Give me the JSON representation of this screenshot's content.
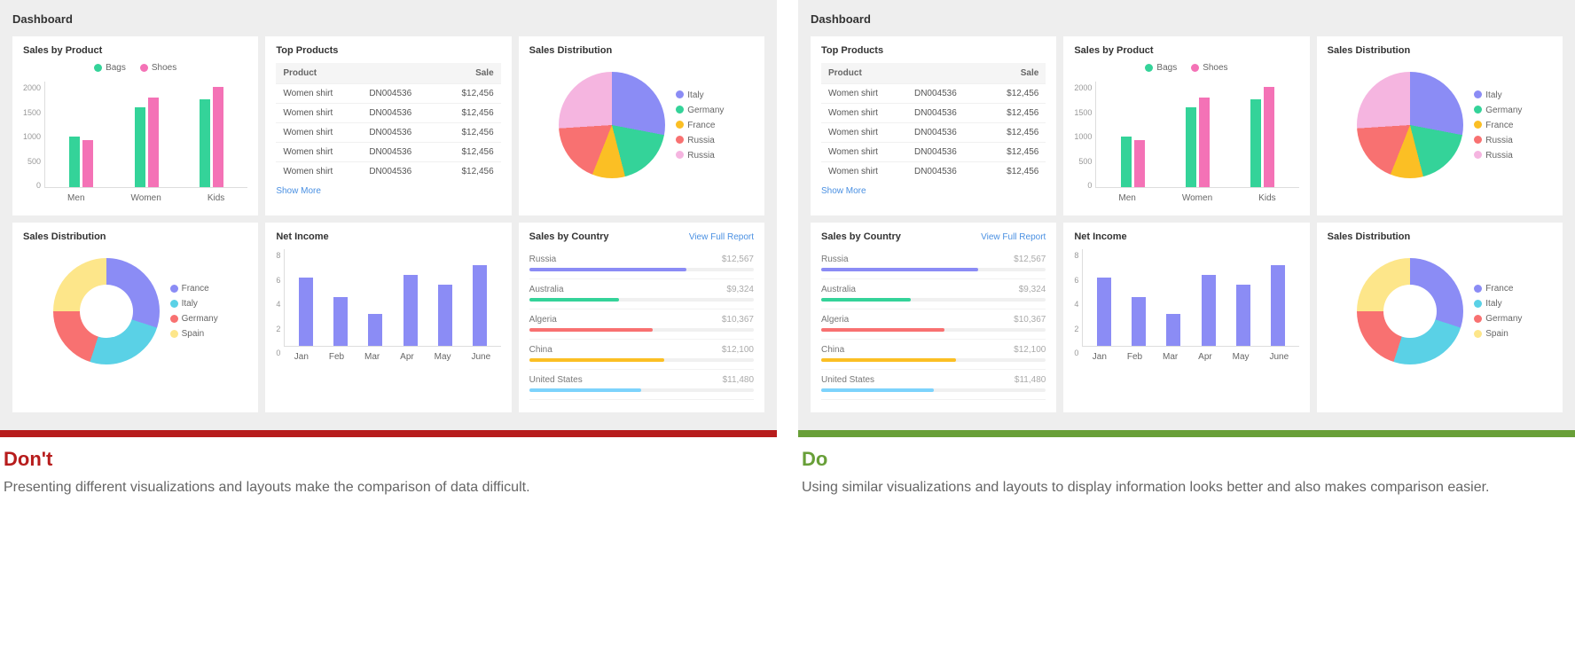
{
  "dont": {
    "dash_title": "Dashboard",
    "heading": "Don't",
    "heading_color": "#b71c1c",
    "bar_color": "#b71c1c",
    "desc": "Presenting different visualizations and layouts make the comparison of data difficult.",
    "cards": {
      "sales_by_product": {
        "title": "Sales by Product",
        "legend": [
          {
            "label": "Bags",
            "color": "#34d399"
          },
          {
            "label": "Shoes",
            "color": "#f472b6"
          }
        ],
        "ylim": [
          0,
          2000
        ],
        "ytick_step": 500,
        "categories": [
          "Men",
          "Women",
          "Kids"
        ],
        "series": [
          {
            "color": "#34d399",
            "values": [
              950,
              1500,
              1650
            ]
          },
          {
            "color": "#f472b6",
            "values": [
              880,
              1680,
              1880
            ]
          }
        ]
      },
      "top_products": {
        "title": "Top Products",
        "columns": [
          "Product",
          "",
          "Sale"
        ],
        "rows": [
          [
            "Women shirt",
            "DN004536",
            "$12,456"
          ],
          [
            "Women shirt",
            "DN004536",
            "$12,456"
          ],
          [
            "Women shirt",
            "DN004536",
            "$12,456"
          ],
          [
            "Women shirt",
            "DN004536",
            "$12,456"
          ],
          [
            "Women shirt",
            "DN004536",
            "$12,456"
          ]
        ],
        "show_more": "Show More"
      },
      "sales_dist_pie": {
        "title": "Sales Distribution",
        "type": "pie",
        "slices": [
          {
            "label": "Italy",
            "color": "#8b8cf5",
            "value": 28
          },
          {
            "label": "Germany",
            "color": "#34d399",
            "value": 18
          },
          {
            "label": "France",
            "color": "#fbbf24",
            "value": 10
          },
          {
            "label": "Russia",
            "color": "#f87171",
            "value": 18
          },
          {
            "label": "Russia",
            "color": "#f5b5e0",
            "value": 26
          }
        ]
      },
      "sales_dist_donut": {
        "title": "Sales Distribution",
        "type": "donut",
        "slices": [
          {
            "label": "France",
            "color": "#8b8cf5",
            "value": 30
          },
          {
            "label": "Italy",
            "color": "#5ad1e6",
            "value": 25
          },
          {
            "label": "Germany",
            "color": "#f87171",
            "value": 20
          },
          {
            "label": "Spain",
            "color": "#fde68a",
            "value": 25
          }
        ]
      },
      "net_income": {
        "title": "Net Income",
        "ylim": [
          0,
          8
        ],
        "ytick_step": 2,
        "categories": [
          "Jan",
          "Feb",
          "Mar",
          "Apr",
          "May",
          "June"
        ],
        "color": "#8b8cf5",
        "values": [
          5.6,
          4.0,
          2.6,
          5.8,
          5.0,
          6.6
        ]
      },
      "sales_by_country": {
        "title": "Sales by Country",
        "link": "View Full Report",
        "rows": [
          {
            "label": "Russia",
            "value": "$12,567",
            "pct": 70,
            "color": "#8b8cf5"
          },
          {
            "label": "Australia",
            "value": "$9,324",
            "pct": 40,
            "color": "#34d399"
          },
          {
            "label": "Algeria",
            "value": "$10,367",
            "pct": 55,
            "color": "#f87171"
          },
          {
            "label": "China",
            "value": "$12,100",
            "pct": 60,
            "color": "#fbbf24"
          },
          {
            "label": "United States",
            "value": "$11,480",
            "pct": 50,
            "color": "#7dd3fc"
          }
        ]
      }
    }
  },
  "do": {
    "dash_title": "Dashboard",
    "heading": "Do",
    "heading_color": "#689f38",
    "bar_color": "#689f38",
    "desc": "Using similar visualizations and layouts to display information looks better and also makes comparison easier.",
    "cards": {
      "top_products": {
        "title": "Top Products",
        "columns": [
          "Product",
          "",
          "Sale"
        ],
        "rows": [
          [
            "Women shirt",
            "DN004536",
            "$12,456"
          ],
          [
            "Women shirt",
            "DN004536",
            "$12,456"
          ],
          [
            "Women shirt",
            "DN004536",
            "$12,456"
          ],
          [
            "Women shirt",
            "DN004536",
            "$12,456"
          ],
          [
            "Women shirt",
            "DN004536",
            "$12,456"
          ]
        ],
        "show_more": "Show More"
      },
      "sales_by_product": {
        "title": "Sales by Product",
        "legend": [
          {
            "label": "Bags",
            "color": "#34d399"
          },
          {
            "label": "Shoes",
            "color": "#f472b6"
          }
        ],
        "ylim": [
          0,
          2000
        ],
        "ytick_step": 500,
        "categories": [
          "Men",
          "Women",
          "Kids"
        ],
        "series": [
          {
            "color": "#34d399",
            "values": [
              950,
              1500,
              1650
            ]
          },
          {
            "color": "#f472b6",
            "values": [
              880,
              1680,
              1880
            ]
          }
        ]
      },
      "sales_dist_pie": {
        "title": "Sales Distribution",
        "type": "pie",
        "slices": [
          {
            "label": "Italy",
            "color": "#8b8cf5",
            "value": 28
          },
          {
            "label": "Germany",
            "color": "#34d399",
            "value": 18
          },
          {
            "label": "France",
            "color": "#fbbf24",
            "value": 10
          },
          {
            "label": "Russia",
            "color": "#f87171",
            "value": 18
          },
          {
            "label": "Russia",
            "color": "#f5b5e0",
            "value": 26
          }
        ]
      },
      "sales_by_country": {
        "title": "Sales by Country",
        "link": "View Full Report",
        "rows": [
          {
            "label": "Russia",
            "value": "$12,567",
            "pct": 70,
            "color": "#8b8cf5"
          },
          {
            "label": "Australia",
            "value": "$9,324",
            "pct": 40,
            "color": "#34d399"
          },
          {
            "label": "Algeria",
            "value": "$10,367",
            "pct": 55,
            "color": "#f87171"
          },
          {
            "label": "China",
            "value": "$12,100",
            "pct": 60,
            "color": "#fbbf24"
          },
          {
            "label": "United States",
            "value": "$11,480",
            "pct": 50,
            "color": "#7dd3fc"
          }
        ]
      },
      "net_income": {
        "title": "Net Income",
        "ylim": [
          0,
          8
        ],
        "ytick_step": 2,
        "categories": [
          "Jan",
          "Feb",
          "Mar",
          "Apr",
          "May",
          "June"
        ],
        "color": "#8b8cf5",
        "values": [
          5.6,
          4.0,
          2.6,
          5.8,
          5.0,
          6.6
        ]
      },
      "sales_dist_donut": {
        "title": "Sales Distribution",
        "type": "donut",
        "slices": [
          {
            "label": "France",
            "color": "#8b8cf5",
            "value": 30
          },
          {
            "label": "Italy",
            "color": "#5ad1e6",
            "value": 25
          },
          {
            "label": "Germany",
            "color": "#f87171",
            "value": 20
          },
          {
            "label": "Spain",
            "color": "#fde68a",
            "value": 25
          }
        ]
      }
    }
  }
}
